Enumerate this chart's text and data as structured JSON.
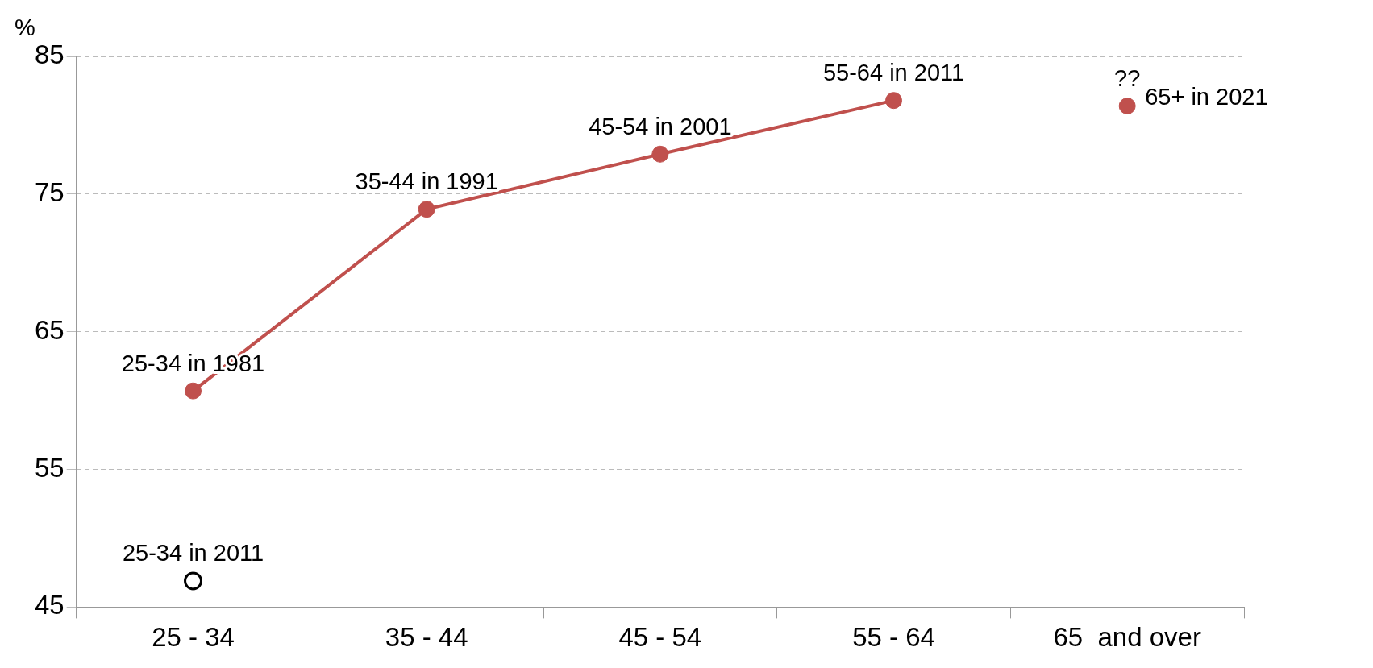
{
  "chart_data": {
    "type": "line",
    "ylabel": "%",
    "categories": [
      "25 - 34",
      "35 - 44",
      "45 - 54",
      "55 - 64",
      "65  and over"
    ],
    "series": [
      {
        "color": "#c0504d",
        "values": [
          60.7,
          73.9,
          77.9,
          81.8,
          null
        ]
      },
      {
        "color": "#c0504d",
        "values": [
          null,
          null,
          null,
          null,
          81.4
        ]
      },
      {
        "type": "scatter",
        "color": "#000000",
        "values": [
          46.9,
          null,
          null,
          null,
          null
        ]
      }
    ],
    "ylim": [
      45,
      85
    ],
    "yticks": [
      45,
      55,
      65,
      75,
      85
    ],
    "grid": "y",
    "marker": "circle",
    "legend": false,
    "annotations": [
      {
        "text": "25-34 in 1981",
        "x": "25 - 34",
        "y": 60.7
      },
      {
        "text": "35-44 in 1991",
        "x": "35 - 44",
        "y": 73.9
      },
      {
        "text": "45-54 in 2001",
        "x": "45 - 54",
        "y": 77.9
      },
      {
        "text": "55-64 in 2011",
        "x": "55 - 64",
        "y": 81.8
      },
      {
        "text": "??",
        "x": "65  and over",
        "y": 81.4
      },
      {
        "text": "65+ in 2021",
        "x": "65  and over",
        "y": 81.4
      },
      {
        "text": "25-34 in 2011",
        "x": "25 - 34",
        "y": 46.9
      }
    ]
  }
}
